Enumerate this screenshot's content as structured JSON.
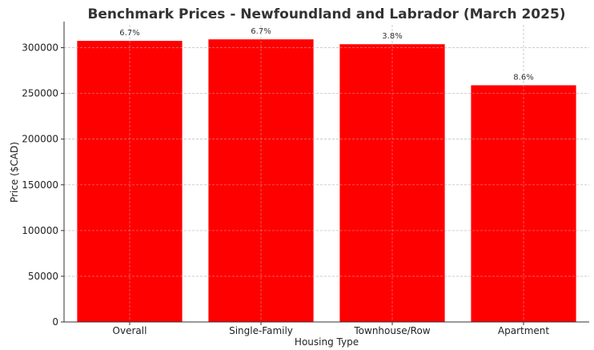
{
  "chart_data": {
    "type": "bar",
    "title": "Benchmark Prices - Newfoundland and Labrador (March 2025)",
    "xlabel": "Housing Type",
    "ylabel": "Price ($CAD)",
    "categories": [
      "Overall",
      "Single-Family",
      "Townhouse/Row",
      "Apartment"
    ],
    "values": [
      307500,
      309100,
      303800,
      258900
    ],
    "data_labels": [
      "6.7%",
      "6.7%",
      "3.8%",
      "8.6%"
    ],
    "ylim": [
      0,
      325000
    ],
    "yticks": [
      0,
      50000,
      100000,
      150000,
      200000,
      250000,
      300000
    ],
    "ytick_labels": [
      "0",
      "50000",
      "100000",
      "150000",
      "200000",
      "250000",
      "300000"
    ],
    "bar_color": "#ff0000",
    "grid": true
  }
}
